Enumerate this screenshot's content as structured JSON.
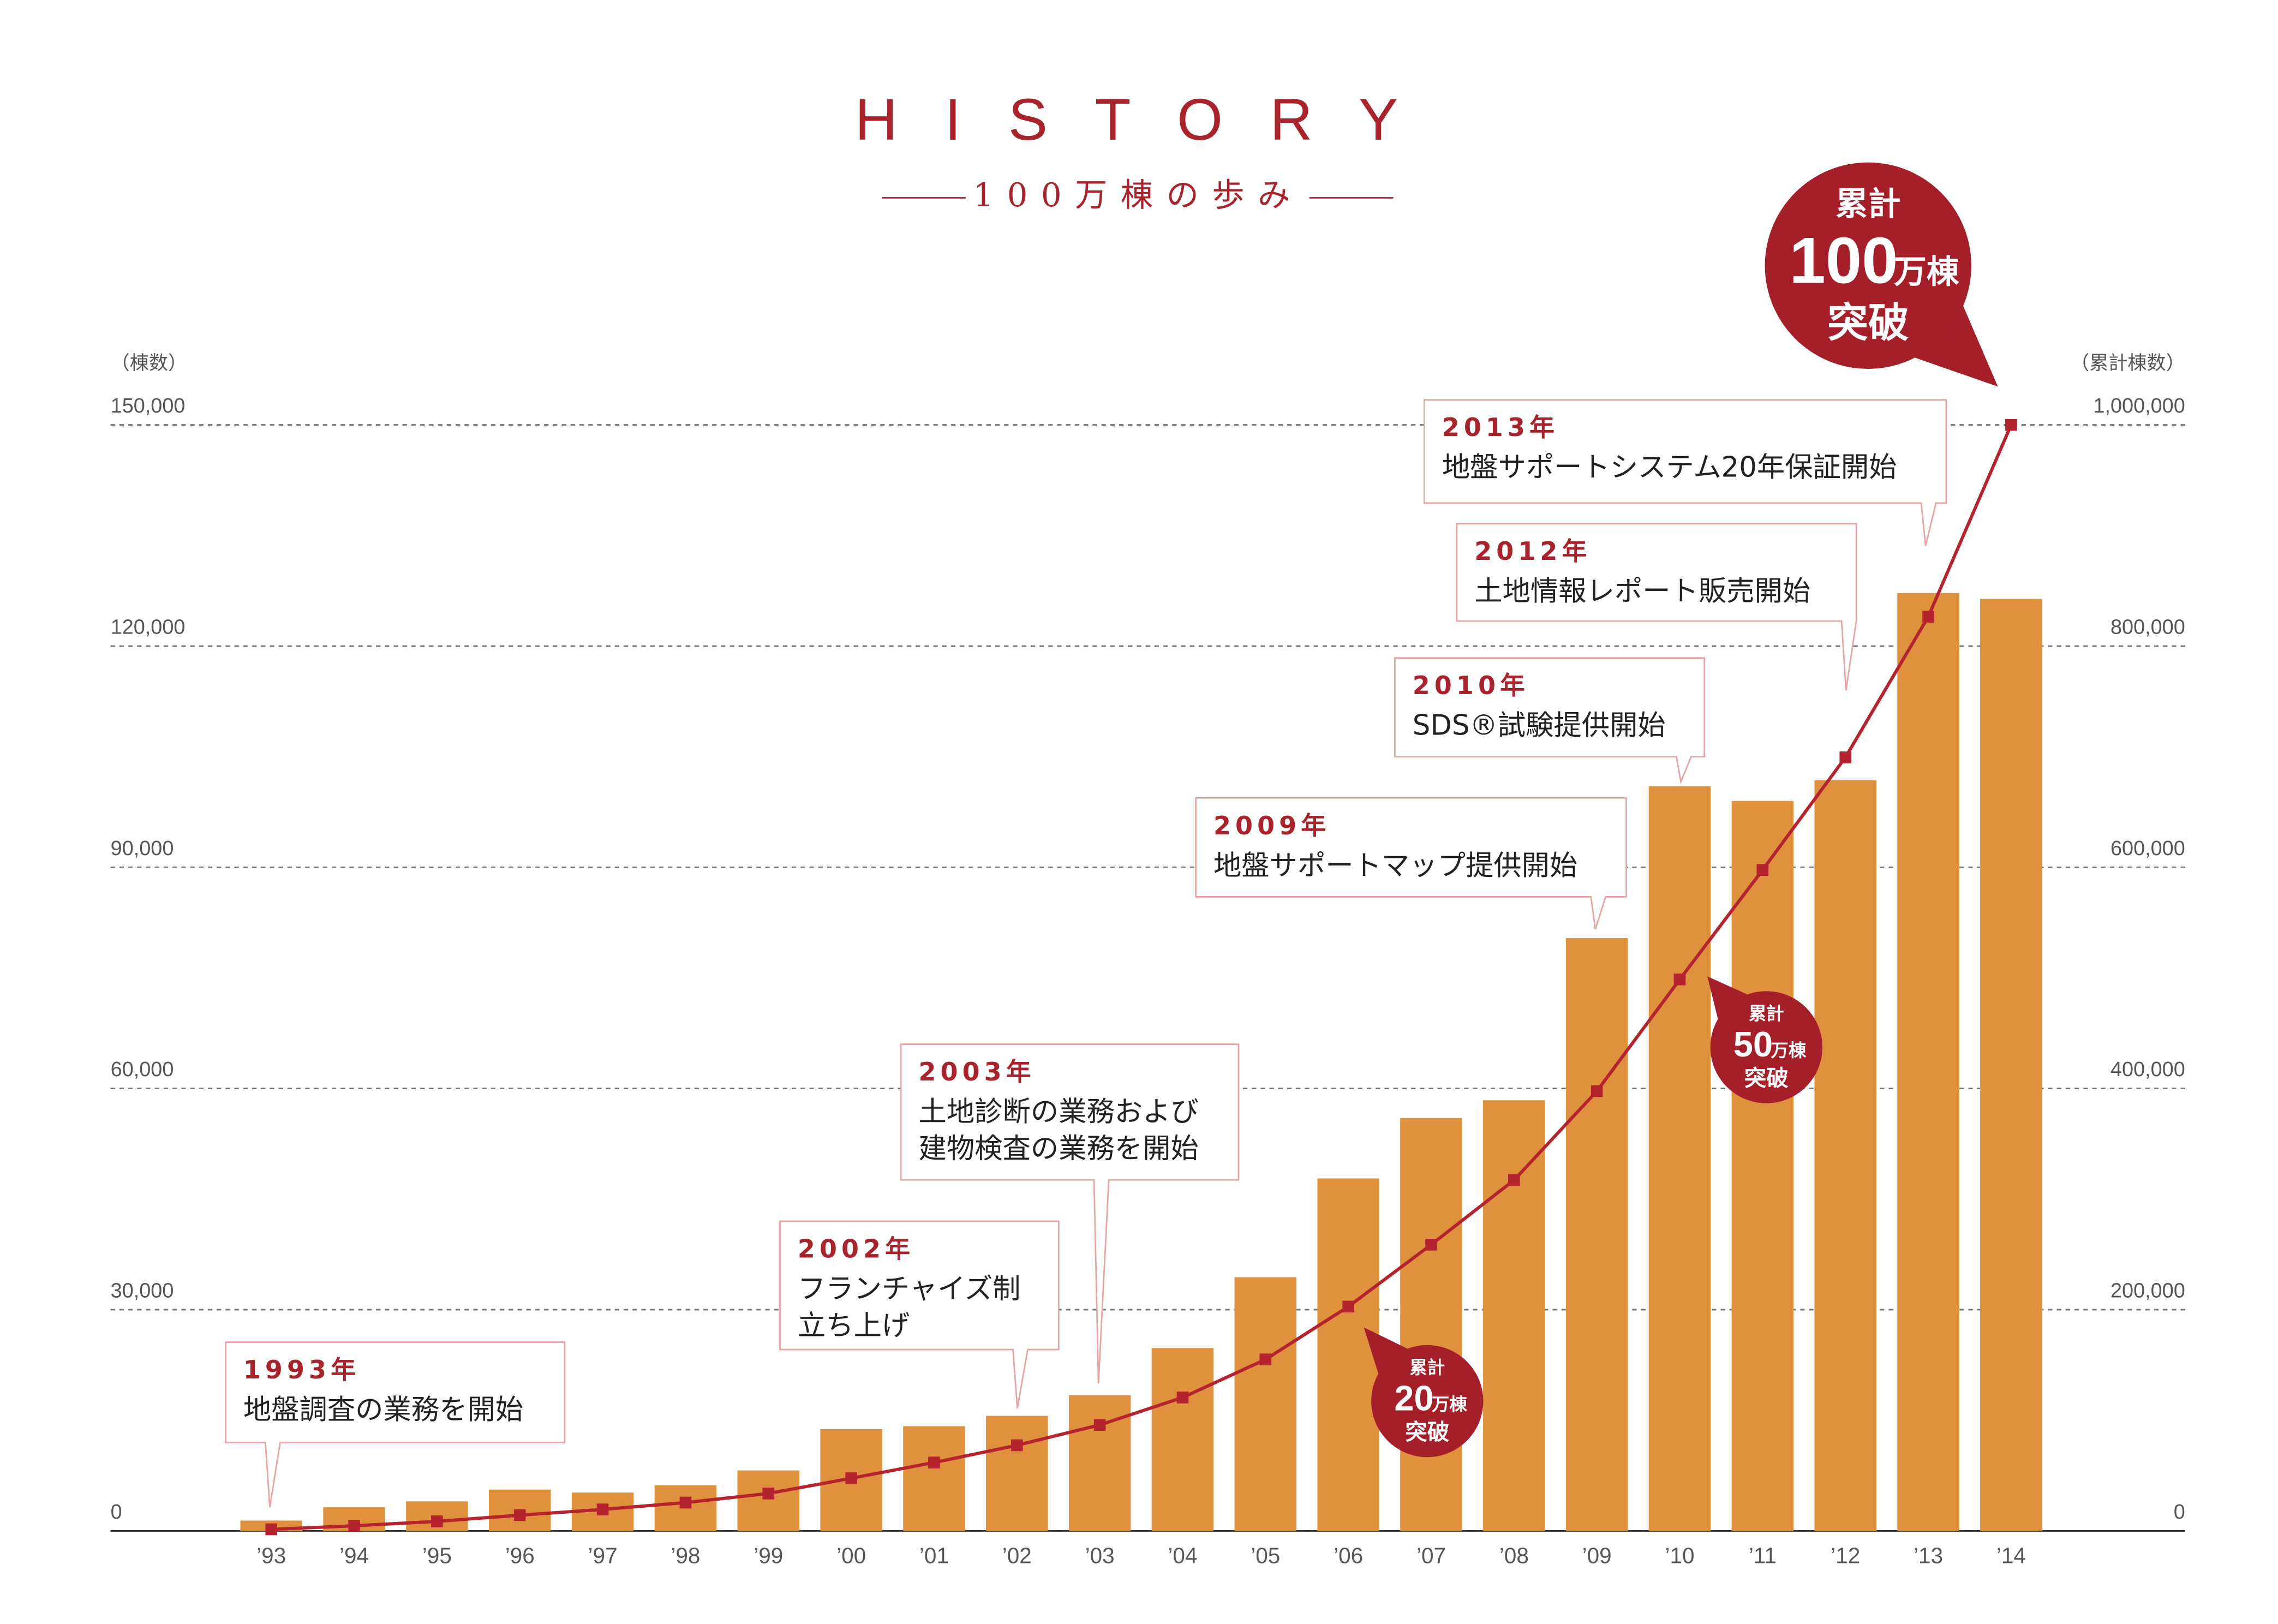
{
  "chart_data": {
    "type": "bar",
    "title": "HISTORY",
    "subtitle": "100万棟の歩み",
    "y_label": "（棟数）",
    "y2_label": "（累計棟数）",
    "categories": [
      "’93",
      "’94",
      "’95",
      "’96",
      "’97",
      "’98",
      "’99",
      "’00",
      "’01",
      "’02",
      "’03",
      "’04",
      "’05",
      "’06",
      "’07",
      "’08",
      "’09",
      "’10",
      "’11",
      "’12",
      "’13",
      "’14"
    ],
    "series": [
      {
        "name": "棟数",
        "color": "#e0913e",
        "type": "bar",
        "values": [
          1400,
          3200,
          4000,
          5600,
          5200,
          6200,
          8200,
          13800,
          14200,
          15600,
          18400,
          24800,
          34400,
          47800,
          56000,
          58400,
          80400,
          101000,
          99000,
          101800,
          127200,
          126400
        ]
      },
      {
        "name": "累計棟数",
        "color": "#b5232e",
        "type": "line",
        "axis": "y2",
        "values": [
          1400,
          4600,
          8600,
          14200,
          19400,
          25600,
          33800,
          47600,
          61800,
          77400,
          95800,
          120600,
          155000,
          202800,
          258800,
          317200,
          397600,
          498600,
          597600,
          699400,
          826600,
          1000000
        ]
      }
    ],
    "ylim": [
      0,
      150000
    ],
    "yticks": [
      0,
      {
        "value": 30000,
        "label": "30,000"
      },
      {
        "value": 60000,
        "label": "60,000"
      },
      {
        "value": 90000,
        "label": "90,000"
      },
      {
        "value": 120000,
        "label": "120,000"
      },
      {
        "value": 150000,
        "label": "150,000"
      }
    ],
    "y2lim": [
      0,
      1000000
    ],
    "y2ticks": [
      0,
      {
        "value": 200000,
        "label": "200,000"
      },
      {
        "value": 400000,
        "label": "400,000"
      },
      {
        "value": 600000,
        "label": "600,000"
      },
      {
        "value": 800000,
        "label": "800,000"
      },
      {
        "value": 1000000,
        "label": "1,000,000"
      }
    ],
    "grid": true,
    "annotations": [
      {
        "year": "1993年",
        "lines": [
          "地盤調査の業務を開始"
        ]
      },
      {
        "year": "2002年",
        "lines": [
          "フランチャイズ制",
          "立ち上げ"
        ]
      },
      {
        "year": "2003年",
        "lines": [
          "土地診断の業務および",
          "建物検査の業務を開始"
        ]
      },
      {
        "year": "2009年",
        "lines": [
          "地盤サポートマップ提供開始"
        ]
      },
      {
        "year": "2010年",
        "lines": [
          "SDS®試験提供開始"
        ]
      },
      {
        "year": "2012年",
        "lines": [
          "土地情報レポート販売開始"
        ]
      },
      {
        "year": "2013年",
        "lines": [
          "地盤サポートシステム20年保証開始"
        ]
      }
    ],
    "badges": [
      {
        "label": "累計",
        "number": "20",
        "unit": "万棟",
        "text": "突破"
      },
      {
        "label": "累計",
        "number": "50",
        "unit": "万棟",
        "text": "突破"
      },
      {
        "label": "累計",
        "number": "100",
        "unit": "万棟",
        "text": "突破"
      }
    ]
  }
}
